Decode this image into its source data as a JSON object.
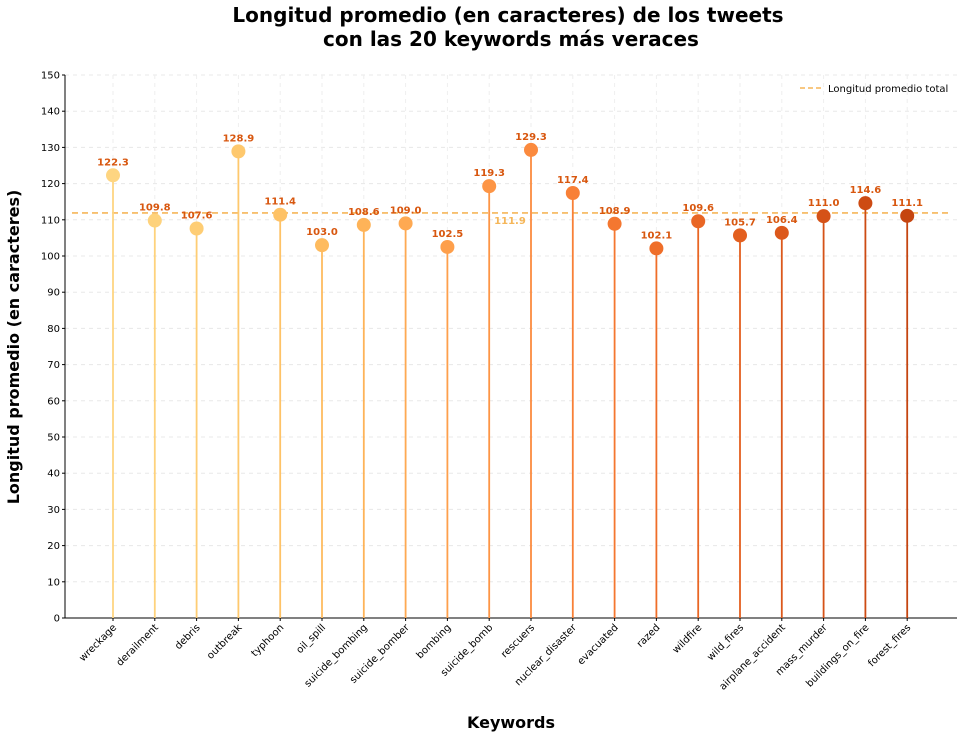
{
  "chart_data": {
    "type": "lollipop",
    "title_lines": [
      "Longitud promedio (en caracteres) de los tweets",
      "con las 20 keywords más veraces"
    ],
    "xlabel": "Keywords",
    "ylabel": "Longitud promedio (en caracteres)",
    "ylim": [
      0,
      150
    ],
    "yticks": [
      0,
      10,
      20,
      30,
      40,
      50,
      60,
      70,
      80,
      90,
      100,
      110,
      120,
      130,
      140,
      150
    ],
    "grid": true,
    "legend_position": "top-right",
    "categories": [
      "wreckage",
      "derailment",
      "debris",
      "outbreak",
      "typhoon",
      "oil_spill",
      "suicide_bombing",
      "suicide_bomber",
      "bombing",
      "suicide_bomb",
      "rescuers",
      "nuclear_disaster",
      "evacuated",
      "razed",
      "wildfire",
      "wild_fires",
      "airplane_accident",
      "mass_murder",
      "buildings_on_fire",
      "forest_fires"
    ],
    "values": [
      122.3,
      109.8,
      107.6,
      128.9,
      111.4,
      103.0,
      108.6,
      109.0,
      102.5,
      119.3,
      129.3,
      117.4,
      108.9,
      102.1,
      109.6,
      105.7,
      106.4,
      111.0,
      114.6,
      111.1
    ],
    "value_labels": [
      "122.3",
      "109.8",
      "107.6",
      "128.9",
      "111.4",
      "103.0",
      "108.6",
      "109.0",
      "102.5",
      "119.3",
      "129.3",
      "117.4",
      "108.9",
      "102.1",
      "109.6",
      "105.7",
      "106.4",
      "111.0",
      "114.6",
      "111.1"
    ],
    "reference_line": {
      "name": "Longitud promedio total",
      "value": 111.9,
      "label": "111.9",
      "color": "#f5b659"
    },
    "colors": [
      "#fed581",
      "#fed27c",
      "#fecd74",
      "#fec86d",
      "#fec266",
      "#febb5f",
      "#feb358",
      "#fea952",
      "#fe9f4b",
      "#fd9545",
      "#fb8a3e",
      "#f88037",
      "#f47730",
      "#ef6e29",
      "#e96624",
      "#e35f1f",
      "#dc581b",
      "#d55217",
      "#cd4b13",
      "#c54510"
    ],
    "label_color": "#d8570f"
  }
}
